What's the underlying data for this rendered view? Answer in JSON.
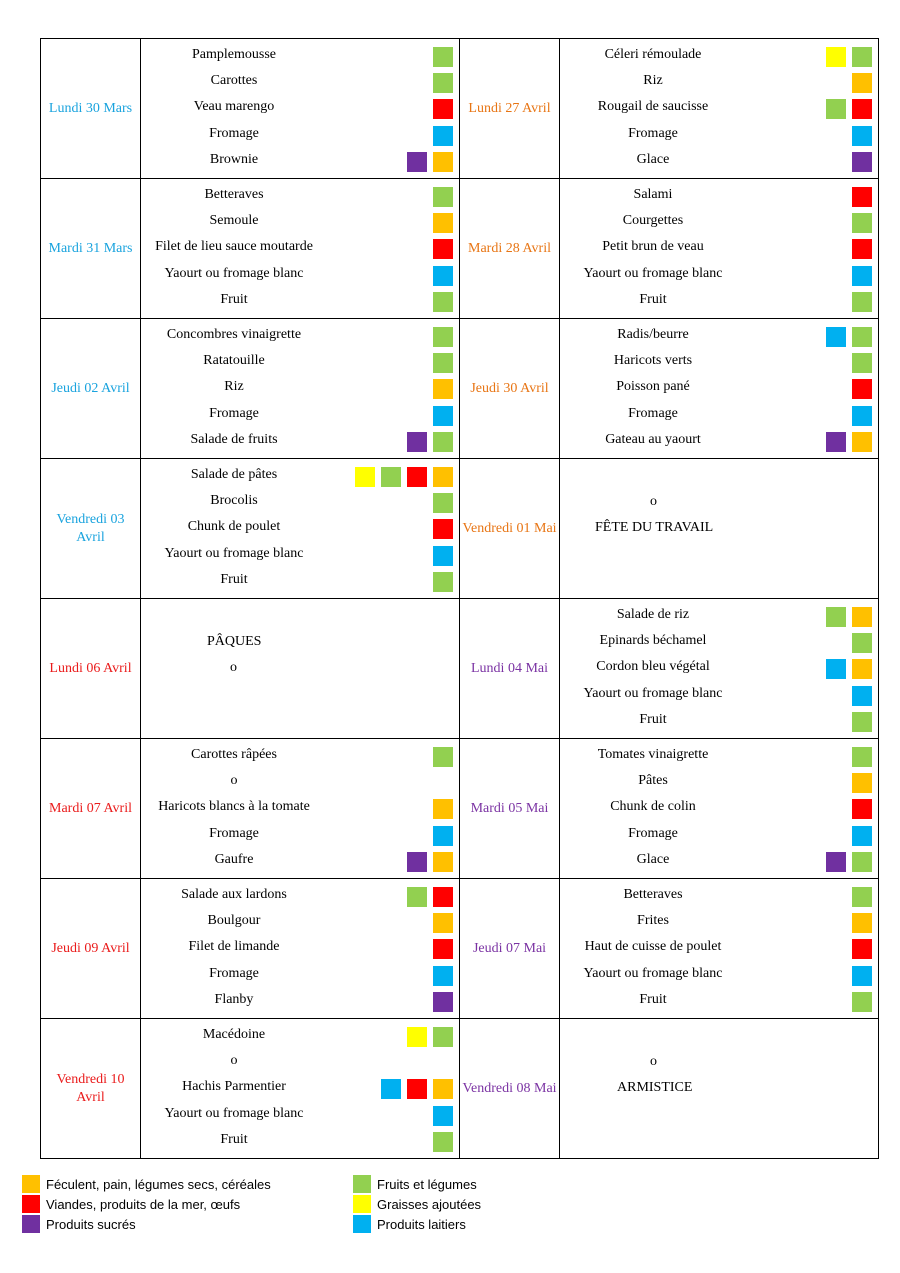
{
  "rows": [
    {
      "left": {
        "day": "Lundi 30 Mars",
        "color": "blue",
        "dishes": [
          {
            "name": "Pamplemousse",
            "tags": [
              "green"
            ]
          },
          {
            "name": "Carottes",
            "tags": [
              "green"
            ]
          },
          {
            "name": "Veau marengo",
            "tags": [
              "red"
            ]
          },
          {
            "name": "Fromage",
            "tags": [
              "blue"
            ]
          },
          {
            "name": "Brownie",
            "tags": [
              "purple",
              "orange"
            ]
          }
        ]
      },
      "right": {
        "day": "Lundi 27 Avril",
        "color": "orange",
        "dishes": [
          {
            "name": "Céleri rémoulade",
            "tags": [
              "yellow",
              "green"
            ]
          },
          {
            "name": "Riz",
            "tags": [
              "orange"
            ]
          },
          {
            "name": "Rougail de saucisse",
            "tags": [
              "green",
              "red"
            ]
          },
          {
            "name": "Fromage",
            "tags": [
              "blue"
            ]
          },
          {
            "name": "Glace",
            "tags": [
              "purple"
            ]
          }
        ]
      }
    },
    {
      "left": {
        "day": "Mardi 31 Mars",
        "color": "blue",
        "dishes": [
          {
            "name": "Betteraves",
            "tags": [
              "green"
            ]
          },
          {
            "name": "Semoule",
            "tags": [
              "orange"
            ]
          },
          {
            "name": "Filet de lieu sauce moutarde",
            "tags": [
              "red"
            ]
          },
          {
            "name": "Yaourt ou fromage blanc",
            "tags": [
              "blue"
            ]
          },
          {
            "name": "Fruit",
            "tags": [
              "green"
            ]
          }
        ]
      },
      "right": {
        "day": "Mardi 28 Avril",
        "color": "orange",
        "dishes": [
          {
            "name": "Salami",
            "tags": [
              "red"
            ]
          },
          {
            "name": "Courgettes",
            "tags": [
              "green"
            ]
          },
          {
            "name": "Petit brun de veau",
            "tags": [
              "red"
            ]
          },
          {
            "name": "Yaourt ou fromage blanc",
            "tags": [
              "blue"
            ]
          },
          {
            "name": "Fruit",
            "tags": [
              "green"
            ]
          }
        ]
      }
    },
    {
      "left": {
        "day": "Jeudi 02 Avril",
        "color": "blue",
        "dishes": [
          {
            "name": "Concombres vinaigrette",
            "tags": [
              "green"
            ]
          },
          {
            "name": "Ratatouille",
            "tags": [
              "green"
            ]
          },
          {
            "name": "Riz",
            "tags": [
              "orange"
            ]
          },
          {
            "name": "Fromage",
            "tags": [
              "blue"
            ]
          },
          {
            "name": "Salade de fruits",
            "tags": [
              "purple",
              "green"
            ]
          }
        ]
      },
      "right": {
        "day": "Jeudi 30 Avril",
        "color": "orange",
        "dishes": [
          {
            "name": "Radis/beurre",
            "tags": [
              "blue",
              "green"
            ]
          },
          {
            "name": "Haricots verts",
            "tags": [
              "green"
            ]
          },
          {
            "name": "Poisson pané",
            "tags": [
              "red"
            ]
          },
          {
            "name": "Fromage",
            "tags": [
              "blue"
            ]
          },
          {
            "name": "Gateau au yaourt",
            "tags": [
              "purple",
              "orange"
            ]
          }
        ]
      }
    },
    {
      "left": {
        "day": "Vendredi 03 Avril",
        "color": "blue",
        "dishes": [
          {
            "name": "Salade de pâtes",
            "tags": [
              "yellow",
              "green",
              "red",
              "orange"
            ]
          },
          {
            "name": "Brocolis",
            "tags": [
              "green"
            ]
          },
          {
            "name": "Chunk de poulet",
            "tags": [
              "red"
            ]
          },
          {
            "name": "Yaourt ou fromage blanc",
            "tags": [
              "blue"
            ]
          },
          {
            "name": "Fruit",
            "tags": [
              "green"
            ]
          }
        ]
      },
      "right": {
        "day": "Vendredi 01 Mai",
        "color": "orange",
        "holiday": {
          "mark": "o",
          "label": "FÊTE DU TRAVAIL"
        }
      }
    },
    {
      "left": {
        "day": "Lundi 06 Avril",
        "color": "red",
        "holiday": {
          "label": "PÂQUES",
          "mark": "o"
        }
      },
      "right": {
        "day": "Lundi 04 Mai",
        "color": "purple",
        "dishes": [
          {
            "name": "Salade de riz",
            "tags": [
              "green",
              "orange"
            ]
          },
          {
            "name": "Epinards béchamel",
            "tags": [
              "green"
            ]
          },
          {
            "name": "Cordon bleu végétal",
            "tags": [
              "blue",
              "orange"
            ]
          },
          {
            "name": "Yaourt ou fromage blanc",
            "tags": [
              "blue"
            ]
          },
          {
            "name": "Fruit",
            "tags": [
              "green"
            ]
          }
        ]
      }
    },
    {
      "left": {
        "day": "Mardi 07 Avril",
        "color": "red",
        "dishes": [
          {
            "name": "Carottes râpées",
            "tags": [
              "green"
            ]
          },
          {
            "name": "o",
            "tags": []
          },
          {
            "name": "Haricots blancs à la tomate",
            "tags": [
              "orange"
            ]
          },
          {
            "name": "Fromage",
            "tags": [
              "blue"
            ]
          },
          {
            "name": "Gaufre",
            "tags": [
              "purple",
              "orange"
            ]
          }
        ]
      },
      "right": {
        "day": "Mardi 05 Mai",
        "color": "purple",
        "dishes": [
          {
            "name": "Tomates vinaigrette",
            "tags": [
              "green"
            ]
          },
          {
            "name": "Pâtes",
            "tags": [
              "orange"
            ]
          },
          {
            "name": "Chunk de colin",
            "tags": [
              "red"
            ]
          },
          {
            "name": "Fromage",
            "tags": [
              "blue"
            ]
          },
          {
            "name": "Glace",
            "tags": [
              "purple",
              "green"
            ]
          }
        ]
      }
    },
    {
      "left": {
        "day": "Jeudi 09 Avril",
        "color": "red",
        "dishes": [
          {
            "name": "Salade aux lardons",
            "tags": [
              "green",
              "red"
            ]
          },
          {
            "name": "Boulgour",
            "tags": [
              "orange"
            ]
          },
          {
            "name": "Filet de limande",
            "tags": [
              "red"
            ]
          },
          {
            "name": "Fromage",
            "tags": [
              "blue"
            ]
          },
          {
            "name": "Flanby",
            "tags": [
              "purple"
            ]
          }
        ]
      },
      "right": {
        "day": "Jeudi 07 Mai",
        "color": "purple",
        "dishes": [
          {
            "name": "Betteraves",
            "tags": [
              "green"
            ]
          },
          {
            "name": "Frites",
            "tags": [
              "orange"
            ]
          },
          {
            "name": "Haut de cuisse de poulet",
            "tags": [
              "red"
            ]
          },
          {
            "name": "Yaourt ou fromage blanc",
            "tags": [
              "blue"
            ]
          },
          {
            "name": "Fruit",
            "tags": [
              "green"
            ]
          }
        ]
      }
    },
    {
      "left": {
        "day": "Vendredi 10 Avril",
        "color": "red",
        "dishes": [
          {
            "name": "Macédoine",
            "tags": [
              "yellow",
              "green"
            ]
          },
          {
            "name": "o",
            "tags": []
          },
          {
            "name": "Hachis Parmentier",
            "tags": [
              "blue",
              "red",
              "orange"
            ]
          },
          {
            "name": "Yaourt ou fromage blanc",
            "tags": [
              "blue"
            ]
          },
          {
            "name": "Fruit",
            "tags": [
              "green"
            ]
          }
        ]
      },
      "right": {
        "day": "Vendredi 08 Mai",
        "color": "purple",
        "holiday": {
          "mark": "o",
          "label": "ARMISTICE"
        }
      }
    }
  ],
  "legend": [
    {
      "color": "orange",
      "label": "Féculent, pain, légumes secs, céréales"
    },
    {
      "color": "green",
      "label": "Fruits et légumes"
    },
    {
      "color": "red",
      "label": "Viandes, produits de la mer, œufs"
    },
    {
      "color": "yellow",
      "label": "Graisses ajoutées"
    },
    {
      "color": "purple",
      "label": "Produits sucrés"
    },
    {
      "color": "blue",
      "label": "Produits laitiers"
    }
  ],
  "colors": {
    "orange": "#ffc000",
    "green": "#92d050",
    "red": "#ff0000",
    "blue": "#00b0f0",
    "yellow": "#ffff00",
    "purple": "#7030a0"
  }
}
